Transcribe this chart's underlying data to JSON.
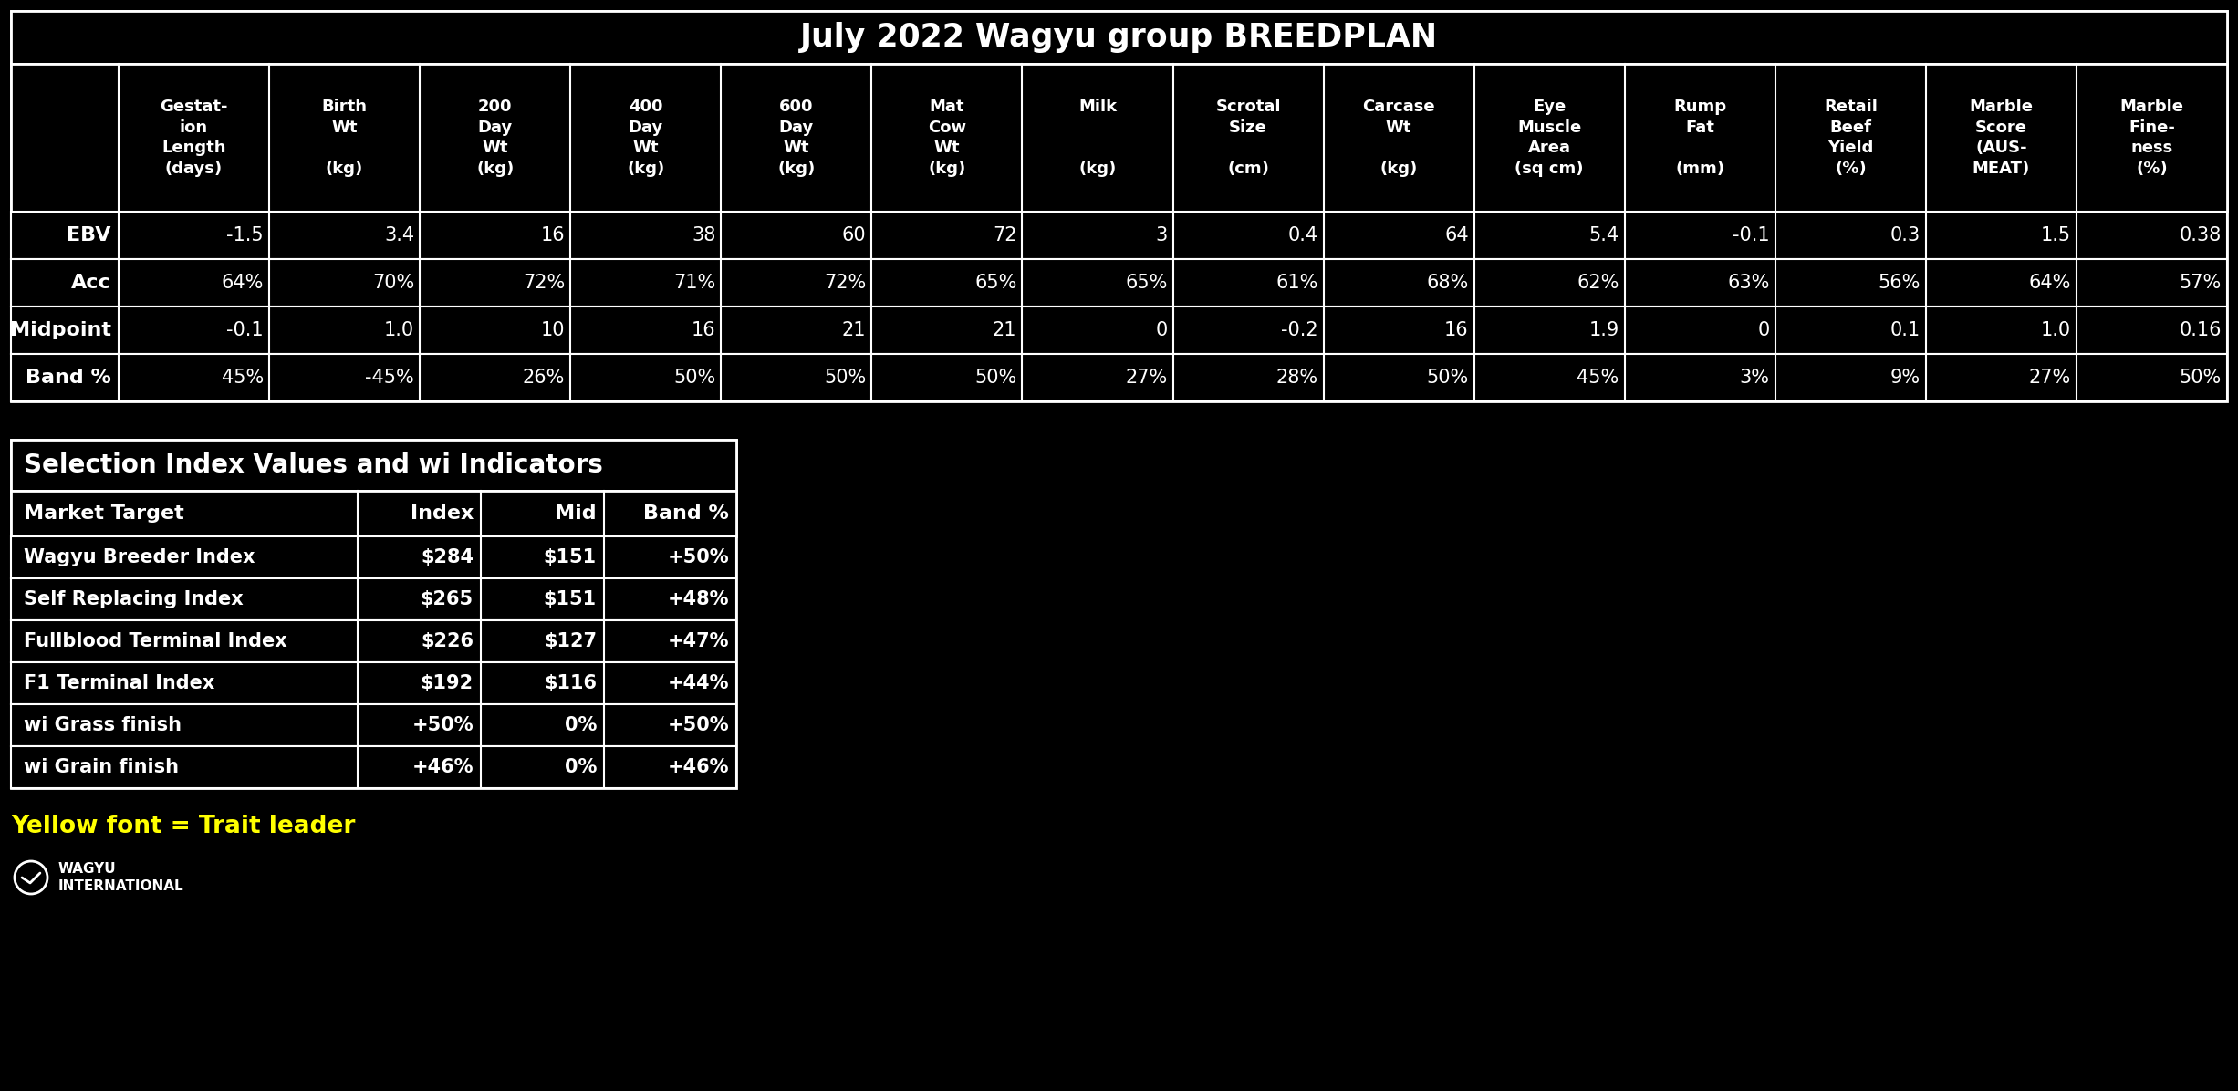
{
  "title": "July 2022 Wagyu group BREEDPLAN",
  "bg_color": "#000000",
  "text_color": "#ffffff",
  "yellow_color": "#ffff00",
  "top_table": {
    "col_headers": [
      "Gestat-\nion\nLength\n(days)",
      "Birth\nWt\n\n(kg)",
      "200\nDay\nWt\n(kg)",
      "400\nDay\nWt\n(kg)",
      "600\nDay\nWt\n(kg)",
      "Mat\nCow\nWt\n(kg)",
      "Milk\n\n\n(kg)",
      "Scrotal\nSize\n\n(cm)",
      "Carcase\nWt\n\n(kg)",
      "Eye\nMuscle\nArea\n(sq cm)",
      "Rump\nFat\n\n(mm)",
      "Retail\nBeef\nYield\n(%)",
      "Marble\nScore\n(AUS-\nMEAT)",
      "Marble\nFine-\nness\n(%)"
    ],
    "row_labels": [
      "EBV",
      "Acc",
      "Midpoint",
      "Band %"
    ],
    "data": [
      [
        "-1.5",
        "3.4",
        "16",
        "38",
        "60",
        "72",
        "3",
        "0.4",
        "64",
        "5.4",
        "-0.1",
        "0.3",
        "1.5",
        "0.38"
      ],
      [
        "64%",
        "70%",
        "72%",
        "71%",
        "72%",
        "65%",
        "65%",
        "61%",
        "68%",
        "62%",
        "63%",
        "56%",
        "64%",
        "57%"
      ],
      [
        "-0.1",
        "1.0",
        "10",
        "16",
        "21",
        "21",
        "0",
        "-0.2",
        "16",
        "1.9",
        "0",
        "0.1",
        "1.0",
        "0.16"
      ],
      [
        "45%",
        "-45%",
        "26%",
        "50%",
        "50%",
        "50%",
        "27%",
        "28%",
        "50%",
        "45%",
        "3%",
        "9%",
        "27%",
        "50%"
      ]
    ]
  },
  "bottom_table": {
    "title": "Selection Index Values and wi Indicators",
    "col_headers": [
      "Market Target",
      "Index",
      "Mid",
      "Band %"
    ],
    "data": [
      [
        "Wagyu Breeder Index",
        "$284",
        "$151",
        "+50%"
      ],
      [
        "Self Replacing Index",
        "$265",
        "$151",
        "+48%"
      ],
      [
        "Fullblood Terminal Index",
        "$226",
        "$127",
        "+47%"
      ],
      [
        "F1 Terminal Index",
        "$192",
        "$116",
        "+44%"
      ],
      [
        "wi Grass finish",
        "+50%",
        "0%",
        "+50%"
      ],
      [
        "wi Grain finish",
        "+46%",
        "0%",
        "+46%"
      ]
    ]
  },
  "note_text": "Yellow font = Trait leader",
  "figsize": [
    24.53,
    11.96
  ],
  "dpi": 100
}
